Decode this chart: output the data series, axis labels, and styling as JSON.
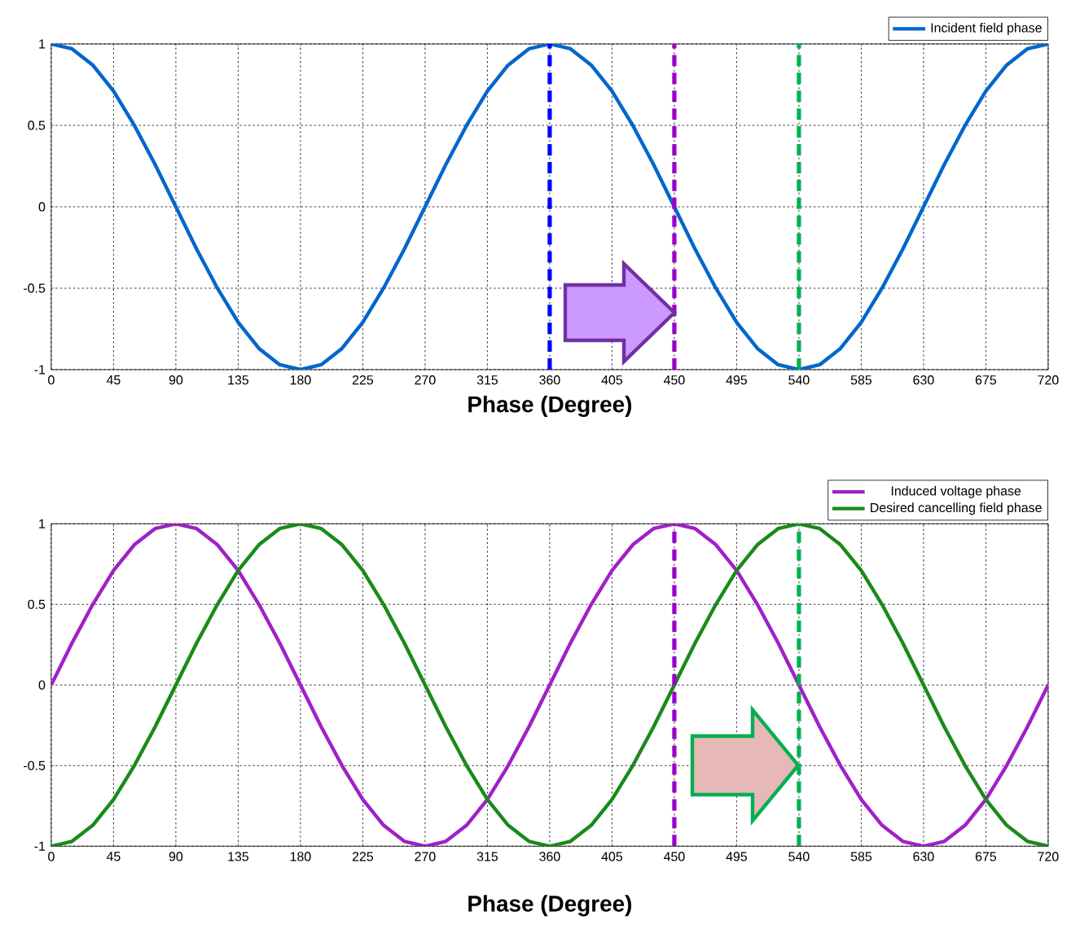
{
  "chart_data": [
    {
      "type": "line",
      "xlabel": "Phase (Degree)",
      "x": [
        0,
        15,
        30,
        45,
        60,
        75,
        90,
        105,
        120,
        135,
        150,
        165,
        180,
        195,
        210,
        225,
        240,
        255,
        270,
        285,
        300,
        315,
        330,
        345,
        360,
        375,
        390,
        405,
        420,
        435,
        450,
        465,
        480,
        495,
        510,
        525,
        540,
        555,
        570,
        585,
        600,
        615,
        630,
        645,
        660,
        675,
        690,
        705,
        720
      ],
      "series": [
        {
          "name": "Incident field phase",
          "color": "#0066cc",
          "values": [
            1,
            0.97,
            0.87,
            0.71,
            0.5,
            0.26,
            0,
            -0.26,
            -0.5,
            -0.71,
            -0.87,
            -0.97,
            -1,
            -0.97,
            -0.87,
            -0.71,
            -0.5,
            -0.26,
            0,
            0.26,
            0.5,
            0.71,
            0.87,
            0.97,
            1,
            0.97,
            0.87,
            0.71,
            0.5,
            0.26,
            0,
            -0.26,
            -0.5,
            -0.71,
            -0.87,
            -0.97,
            -1,
            -0.97,
            -0.87,
            -0.71,
            -0.5,
            -0.26,
            0,
            0.26,
            0.5,
            0.71,
            0.87,
            0.97,
            1
          ]
        }
      ],
      "xlim": [
        0,
        720
      ],
      "ylim": [
        -1,
        1
      ],
      "xticks": [
        0,
        45,
        90,
        135,
        180,
        225,
        270,
        315,
        360,
        405,
        450,
        495,
        540,
        585,
        630,
        675,
        720
      ],
      "yticks": [
        -1,
        -0.5,
        0,
        0.5,
        1
      ],
      "ref_lines": [
        {
          "axis": "x",
          "value": 360,
          "color": "#0000ff",
          "line_style": "dashed"
        },
        {
          "axis": "x",
          "value": 450,
          "color": "#9900cc",
          "line_style": "dashed"
        },
        {
          "axis": "x",
          "value": 540,
          "color": "#00b050",
          "line_style": "dashed"
        }
      ],
      "grid": true,
      "legend": "top right",
      "marker": "none",
      "line_style": "solid"
    },
    {
      "type": "line",
      "xlabel": "Phase (Degree)",
      "x": [
        0,
        15,
        30,
        45,
        60,
        75,
        90,
        105,
        120,
        135,
        150,
        165,
        180,
        195,
        210,
        225,
        240,
        255,
        270,
        285,
        300,
        315,
        330,
        345,
        360,
        375,
        390,
        405,
        420,
        435,
        450,
        465,
        480,
        495,
        510,
        525,
        540,
        555,
        570,
        585,
        600,
        615,
        630,
        645,
        660,
        675,
        690,
        705,
        720
      ],
      "series": [
        {
          "name": "Induced voltage phase",
          "color": "#a020c8",
          "values": [
            0,
            0.26,
            0.5,
            0.71,
            0.87,
            0.97,
            1,
            0.97,
            0.87,
            0.71,
            0.5,
            0.26,
            0,
            -0.26,
            -0.5,
            -0.71,
            -0.87,
            -0.97,
            -1,
            -0.97,
            -0.87,
            -0.71,
            -0.5,
            -0.26,
            0,
            0.26,
            0.5,
            0.71,
            0.87,
            0.97,
            1,
            0.97,
            0.87,
            0.71,
            0.5,
            0.26,
            0,
            -0.26,
            -0.5,
            -0.71,
            -0.87,
            -0.97,
            -1,
            -0.97,
            -0.87,
            -0.71,
            -0.5,
            -0.26,
            0
          ]
        },
        {
          "name": "Desired cancelling field phase",
          "color": "#1a8a1a",
          "values": [
            -1,
            -0.97,
            -0.87,
            -0.71,
            -0.5,
            -0.26,
            0,
            0.26,
            0.5,
            0.71,
            0.87,
            0.97,
            1,
            0.97,
            0.87,
            0.71,
            0.5,
            0.26,
            0,
            -0.26,
            -0.5,
            -0.71,
            -0.87,
            -0.97,
            -1,
            -0.97,
            -0.87,
            -0.71,
            -0.5,
            -0.26,
            0,
            0.26,
            0.5,
            0.71,
            0.87,
            0.97,
            1,
            0.97,
            0.87,
            0.71,
            0.5,
            0.26,
            0,
            -0.26,
            -0.5,
            -0.71,
            -0.87,
            -0.97,
            -1
          ]
        }
      ],
      "xlim": [
        0,
        720
      ],
      "ylim": [
        -1,
        1
      ],
      "xticks": [
        0,
        45,
        90,
        135,
        180,
        225,
        270,
        315,
        360,
        405,
        450,
        495,
        540,
        585,
        630,
        675,
        720
      ],
      "yticks": [
        -1,
        -0.5,
        0,
        0.5,
        1
      ],
      "ref_lines": [
        {
          "axis": "x",
          "value": 450,
          "color": "#9900cc",
          "line_style": "dashed"
        },
        {
          "axis": "x",
          "value": 540,
          "color": "#00b050",
          "line_style": "dashed"
        }
      ],
      "grid": true,
      "legend": "top right",
      "marker": "none",
      "line_style": "solid"
    }
  ]
}
